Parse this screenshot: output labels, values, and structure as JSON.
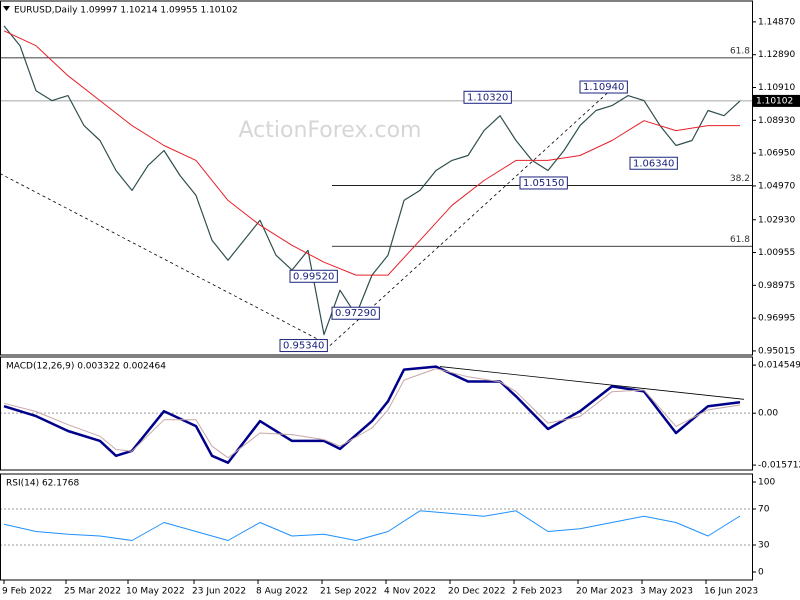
{
  "chart_data": [
    {
      "type": "line",
      "title": "EURUSD,Daily 1.09997 1.10214 1.09955 1.10102",
      "watermark": "ActionForex.com",
      "xlim": [
        -2,
        374
      ],
      "ylim": [
        0.9477,
        1.1613
      ],
      "yticks": [
        {
          "value": 1.1487,
          "label": "1.14870"
        },
        {
          "value": 1.1289,
          "label": "1.12890"
        },
        {
          "value": 1.1091,
          "label": "1.10910"
        },
        {
          "value": 1.0893,
          "label": "1.08930"
        },
        {
          "value": 1.0695,
          "label": "1.06950"
        },
        {
          "value": 1.0497,
          "label": "1.04970"
        },
        {
          "value": 1.0293,
          "label": "1.02930"
        },
        1.00955,
        0.98975,
        0.96995,
        0.95015
      ],
      "series": [
        {
          "color": "#2f4f4f",
          "x": [
            0,
            8,
            16,
            24,
            32,
            40,
            48,
            56,
            64,
            72,
            80,
            88,
            96,
            104,
            112,
            120,
            128,
            136,
            144,
            152,
            160,
            168,
            176,
            184,
            192,
            200,
            208,
            216,
            224,
            232,
            240,
            248,
            256,
            264,
            272,
            280,
            288,
            296,
            304,
            312,
            320,
            328,
            336,
            344,
            352,
            360,
            368
          ],
          "values": [
            1.1463,
            1.1343,
            1.1072,
            1.1012,
            1.1042,
            1.0861,
            1.0771,
            1.059,
            1.047,
            1.062,
            1.0711,
            1.056,
            1.044,
            1.0169,
            1.0049,
            1.0169,
            1.029,
            1.0079,
            0.9989,
            1.0109,
            0.96,
            0.9868,
            0.9718,
            0.9959,
            1.0079,
            1.041,
            1.047,
            1.059,
            1.0651,
            1.0681,
            1.0831,
            1.0921,
            1.0771,
            1.0651,
            1.059,
            1.0711,
            1.0861,
            1.0952,
            1.0982,
            1.1042,
            1.1012,
            1.0861,
            1.0741,
            1.0771,
            1.0952,
            1.0921,
            1.10102
          ]
        },
        {
          "color": "#e8202a",
          "x": [
            0,
            16,
            32,
            48,
            64,
            80,
            96,
            112,
            128,
            144,
            160,
            176,
            192,
            208,
            224,
            240,
            256,
            272,
            288,
            304,
            320,
            336,
            352,
            368
          ],
          "values": [
            1.1433,
            1.1343,
            1.1162,
            1.1012,
            1.0861,
            1.0741,
            1.0651,
            1.041,
            1.026,
            1.0139,
            1.0037,
            0.9959,
            0.9959,
            1.0169,
            1.038,
            1.053,
            1.0651,
            1.0651,
            1.0681,
            1.0771,
            1.0891,
            1.0831,
            1.0861,
            1.0861
          ]
        }
      ],
      "levels": [
        {
          "label": "61.8",
          "value": 1.127,
          "from": -2
        },
        {
          "label": "38.2",
          "value": 1.05,
          "from": 164
        },
        {
          "label": "61.8",
          "value": 1.0133,
          "from": 164
        }
      ],
      "last_price": {
        "value": 1.10102,
        "label": "1.10102"
      },
      "annotations": [
        {
          "value": 1.1032,
          "label": "1.10320",
          "x": 230
        },
        {
          "value": 1.1094,
          "label": "1.10940",
          "x": 288
        },
        {
          "value": 1.0515,
          "label": "1.05150",
          "x": 258
        },
        {
          "value": 1.0634,
          "label": "1.06340",
          "x": 313
        },
        {
          "value": 0.9534,
          "label": "0.95340",
          "x": 138
        },
        {
          "value": 0.9952,
          "label": "0.99520",
          "x": 143
        },
        {
          "value": 0.9729,
          "label": "0.97290",
          "x": 164
        }
      ],
      "trendlines": [
        {
          "x": [
            -2,
            163
          ],
          "values": [
            1.0572,
            0.9534
          ]
        },
        {
          "x": [
            163,
            305
          ],
          "values": [
            0.9534,
            1.1094
          ]
        }
      ]
    },
    {
      "type": "line",
      "title": "MACD(12,26,9) 0.003322 0.002464",
      "xlim": [
        -2,
        374
      ],
      "ylim": [
        -0.0172,
        0.017
      ],
      "yticks": [
        0.014549,
        {
          "value": 0,
          "label": "0.00"
        },
        -0.015712
      ],
      "levels": [
        {
          "value": 0
        }
      ],
      "series": [
        {
          "color": "#00008b",
          "x": [
            0,
            16,
            32,
            48,
            56,
            64,
            80,
            96,
            104,
            112,
            128,
            144,
            160,
            168,
            184,
            192,
            200,
            216,
            232,
            248,
            256,
            272,
            288,
            304,
            320,
            336,
            352,
            368
          ],
          "values": [
            0.0021,
            -0.0009,
            -0.0054,
            -0.0084,
            -0.0129,
            -0.0114,
            0.0006,
            -0.0039,
            -0.0129,
            -0.015,
            -0.0024,
            -0.0084,
            -0.0084,
            -0.0108,
            -0.0024,
            0.0036,
            0.0132,
            0.0141,
            0.0096,
            0.0096,
            0.0051,
            -0.0048,
            0.0006,
            0.0081,
            0.0066,
            -0.006,
            0.0021,
            0.003322
          ]
        },
        {
          "color": "#c8a8a8",
          "x": [
            0,
            16,
            32,
            48,
            56,
            64,
            80,
            96,
            104,
            112,
            128,
            144,
            160,
            168,
            184,
            192,
            200,
            216,
            232,
            248,
            256,
            272,
            288,
            304,
            320,
            336,
            352,
            368
          ],
          "values": [
            0.003,
            0.0005,
            -0.0035,
            -0.007,
            -0.011,
            -0.0115,
            -0.002,
            -0.002,
            -0.01,
            -0.0135,
            -0.006,
            -0.0065,
            -0.008,
            -0.01,
            -0.0045,
            0.001,
            0.01,
            0.0135,
            0.011,
            0.0095,
            0.0065,
            -0.003,
            -0.001,
            0.0065,
            0.007,
            -0.004,
            0.001,
            0.002464
          ]
        }
      ],
      "trendlines": [
        {
          "x": [
            218,
            370
          ],
          "values": [
            0.0141,
            0.0042
          ]
        }
      ]
    },
    {
      "type": "line",
      "title": "RSI(14) 62.1768",
      "xlim": [
        -2,
        374
      ],
      "ylim": [
        -8.9,
        108.9
      ],
      "yticks": [
        100,
        70,
        30,
        0
      ],
      "levels": [
        {
          "value": 70
        },
        {
          "value": 30
        }
      ],
      "series": [
        {
          "color": "#1e90ff",
          "x": [
            0,
            16,
            32,
            48,
            64,
            80,
            96,
            112,
            128,
            144,
            160,
            176,
            192,
            208,
            224,
            240,
            256,
            272,
            288,
            304,
            320,
            336,
            352,
            368
          ],
          "values": [
            53,
            45,
            42,
            40,
            35,
            55,
            45,
            35,
            55,
            40,
            42,
            35,
            45,
            68,
            65,
            62,
            68,
            45,
            48,
            55,
            62,
            55,
            40,
            62.1768
          ]
        }
      ],
      "xticks": [
        {
          "value": 0,
          "label": "9 Feb 2022"
        },
        {
          "value": 31,
          "label": "25 Mar 2022"
        },
        {
          "value": 62,
          "label": "10 May 2022"
        },
        {
          "value": 95,
          "label": "23 Jun 2022"
        },
        {
          "value": 127,
          "label": "8 Aug 2022"
        },
        {
          "value": 159,
          "label": "21 Sep 2022"
        },
        {
          "value": 191,
          "label": "4 Nov 2022"
        },
        {
          "value": 223,
          "label": "20 Dec 2022"
        },
        {
          "value": 255,
          "label": "2 Feb 2023"
        },
        {
          "value": 287,
          "label": "20 Mar 2023"
        },
        {
          "value": 319,
          "label": "3 May 2023"
        },
        {
          "value": 351,
          "label": "16 Jun 2023"
        }
      ]
    }
  ]
}
